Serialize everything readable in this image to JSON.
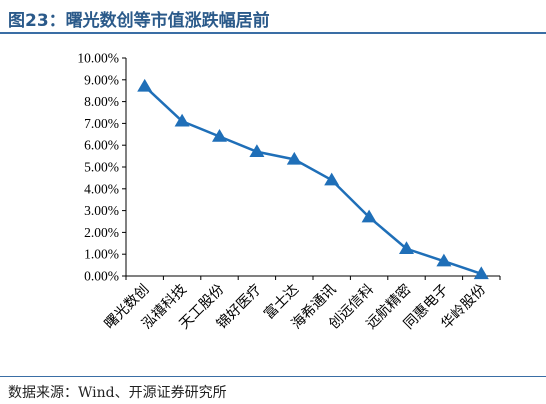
{
  "header": {
    "title": "图23：曙光数创等市值涨跌幅居前"
  },
  "footer": {
    "source": "数据来源：Wind、开源证券研究所"
  },
  "colors": {
    "series": "#1f6fb8",
    "title": "#2b5a8a"
  },
  "chart_data": {
    "type": "line",
    "categories": [
      "曙光数创",
      "泓禧科技",
      "天工股份",
      "锦好医疗",
      "富士达",
      "海希通讯",
      "创远信科",
      "远航精密",
      "同惠电子",
      "华岭股份"
    ],
    "series": [
      {
        "values": [
          8.7,
          7.1,
          6.4,
          5.7,
          5.35,
          4.4,
          2.7,
          1.25,
          0.68,
          0.1
        ],
        "marker": "triangle"
      }
    ],
    "ylim": [
      0,
      10
    ],
    "yticks": [
      "0.00%",
      "1.00%",
      "2.00%",
      "3.00%",
      "4.00%",
      "5.00%",
      "6.00%",
      "7.00%",
      "8.00%",
      "9.00%",
      "10.00%"
    ],
    "ytick_values": [
      0,
      1,
      2,
      3,
      4,
      5,
      6,
      7,
      8,
      9,
      10
    ],
    "grid": false,
    "legend": "none"
  }
}
